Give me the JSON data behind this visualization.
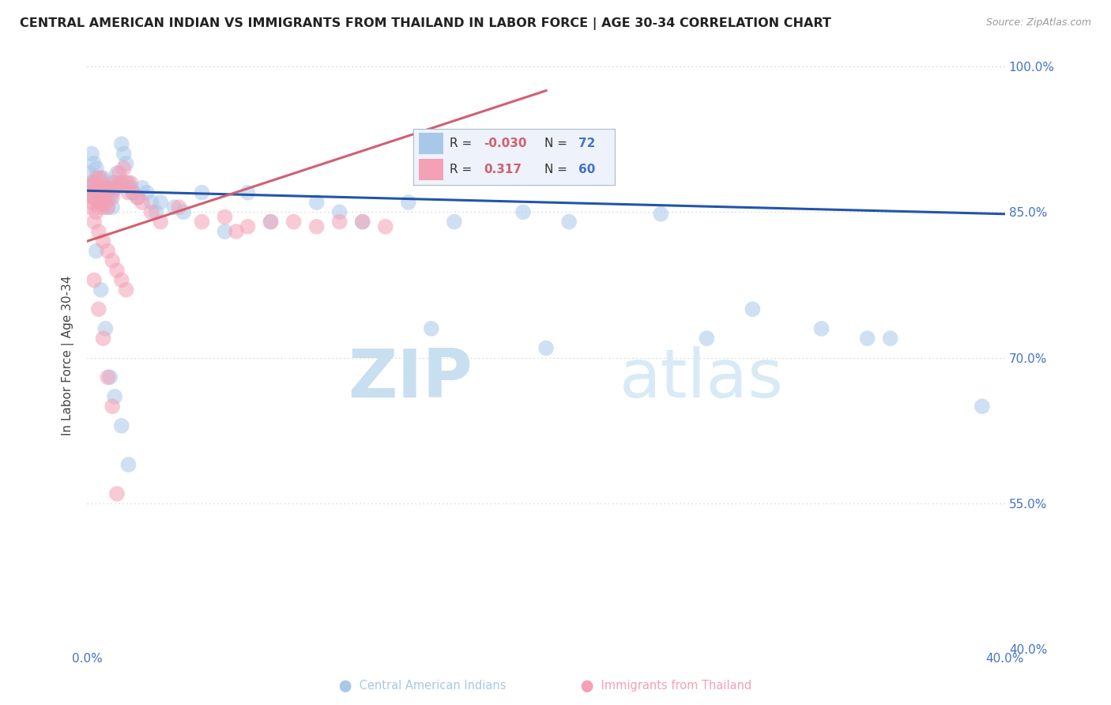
{
  "title": "CENTRAL AMERICAN INDIAN VS IMMIGRANTS FROM THAILAND IN LABOR FORCE | AGE 30-34 CORRELATION CHART",
  "source": "Source: ZipAtlas.com",
  "ylabel": "In Labor Force | Age 30-34",
  "xlim": [
    0.0,
    0.4
  ],
  "ylim": [
    0.4,
    1.005
  ],
  "xticks": [
    0.0,
    0.05,
    0.1,
    0.15,
    0.2,
    0.25,
    0.3,
    0.35,
    0.4
  ],
  "yticks": [
    0.4,
    0.55,
    0.7,
    0.85,
    1.0
  ],
  "yticklabels": [
    "40.0%",
    "55.0%",
    "70.0%",
    "85.0%",
    "100.0%"
  ],
  "watermark_zip": "ZIP",
  "watermark_atlas": "atlas",
  "legend_r1": "-0.030",
  "legend_n1": "72",
  "legend_r2": "0.317",
  "legend_n2": "60",
  "blue_color": "#a8c8e8",
  "pink_color": "#f4a0b5",
  "blue_line_color": "#2255aa",
  "pink_line_color": "#d06070",
  "grid_color": "#cccccc",
  "title_color": "#222222",
  "axis_label_color": "#444444",
  "tick_color": "#4472c4",
  "blue_scatter_x": [
    0.001,
    0.001,
    0.002,
    0.002,
    0.003,
    0.003,
    0.003,
    0.004,
    0.004,
    0.004,
    0.005,
    0.005,
    0.005,
    0.005,
    0.006,
    0.006,
    0.006,
    0.007,
    0.007,
    0.007,
    0.008,
    0.008,
    0.009,
    0.009,
    0.01,
    0.01,
    0.011,
    0.011,
    0.012,
    0.013,
    0.014,
    0.015,
    0.016,
    0.017,
    0.018,
    0.019,
    0.02,
    0.022,
    0.024,
    0.026,
    0.028,
    0.03,
    0.032,
    0.038,
    0.042,
    0.05,
    0.06,
    0.07,
    0.08,
    0.1,
    0.11,
    0.12,
    0.14,
    0.16,
    0.19,
    0.21,
    0.25,
    0.29,
    0.32,
    0.35,
    0.39,
    0.15,
    0.2,
    0.27,
    0.34,
    0.004,
    0.006,
    0.008,
    0.01,
    0.012,
    0.015,
    0.018
  ],
  "blue_scatter_y": [
    0.87,
    0.89,
    0.88,
    0.91,
    0.865,
    0.88,
    0.9,
    0.87,
    0.875,
    0.895,
    0.86,
    0.875,
    0.885,
    0.87,
    0.86,
    0.875,
    0.88,
    0.865,
    0.875,
    0.885,
    0.86,
    0.87,
    0.855,
    0.875,
    0.865,
    0.88,
    0.87,
    0.855,
    0.875,
    0.89,
    0.88,
    0.92,
    0.91,
    0.9,
    0.88,
    0.875,
    0.87,
    0.865,
    0.875,
    0.87,
    0.86,
    0.85,
    0.86,
    0.855,
    0.85,
    0.87,
    0.83,
    0.87,
    0.84,
    0.86,
    0.85,
    0.84,
    0.86,
    0.84,
    0.85,
    0.84,
    0.848,
    0.75,
    0.73,
    0.72,
    0.65,
    0.73,
    0.71,
    0.72,
    0.72,
    0.81,
    0.77,
    0.73,
    0.68,
    0.66,
    0.63,
    0.59
  ],
  "pink_scatter_x": [
    0.001,
    0.001,
    0.002,
    0.002,
    0.003,
    0.003,
    0.004,
    0.004,
    0.004,
    0.005,
    0.005,
    0.006,
    0.006,
    0.006,
    0.007,
    0.007,
    0.008,
    0.008,
    0.009,
    0.009,
    0.01,
    0.011,
    0.012,
    0.013,
    0.014,
    0.015,
    0.016,
    0.017,
    0.018,
    0.019,
    0.02,
    0.022,
    0.024,
    0.028,
    0.032,
    0.04,
    0.05,
    0.06,
    0.065,
    0.07,
    0.08,
    0.09,
    0.1,
    0.11,
    0.12,
    0.13,
    0.003,
    0.005,
    0.007,
    0.009,
    0.011,
    0.013,
    0.015,
    0.017,
    0.003,
    0.005,
    0.007,
    0.009,
    0.011,
    0.013
  ],
  "pink_scatter_y": [
    0.87,
    0.855,
    0.86,
    0.875,
    0.865,
    0.88,
    0.87,
    0.85,
    0.885,
    0.855,
    0.875,
    0.86,
    0.87,
    0.885,
    0.855,
    0.87,
    0.86,
    0.875,
    0.855,
    0.87,
    0.875,
    0.865,
    0.88,
    0.875,
    0.89,
    0.88,
    0.895,
    0.88,
    0.87,
    0.88,
    0.87,
    0.865,
    0.86,
    0.85,
    0.84,
    0.855,
    0.84,
    0.845,
    0.83,
    0.835,
    0.84,
    0.84,
    0.835,
    0.84,
    0.84,
    0.835,
    0.84,
    0.83,
    0.82,
    0.81,
    0.8,
    0.79,
    0.78,
    0.77,
    0.78,
    0.75,
    0.72,
    0.68,
    0.65,
    0.56
  ],
  "blue_trend_x": [
    0.0,
    0.4
  ],
  "blue_trend_y": [
    0.872,
    0.848
  ],
  "pink_trend_x": [
    0.0,
    0.2
  ],
  "pink_trend_y": [
    0.82,
    0.975
  ]
}
